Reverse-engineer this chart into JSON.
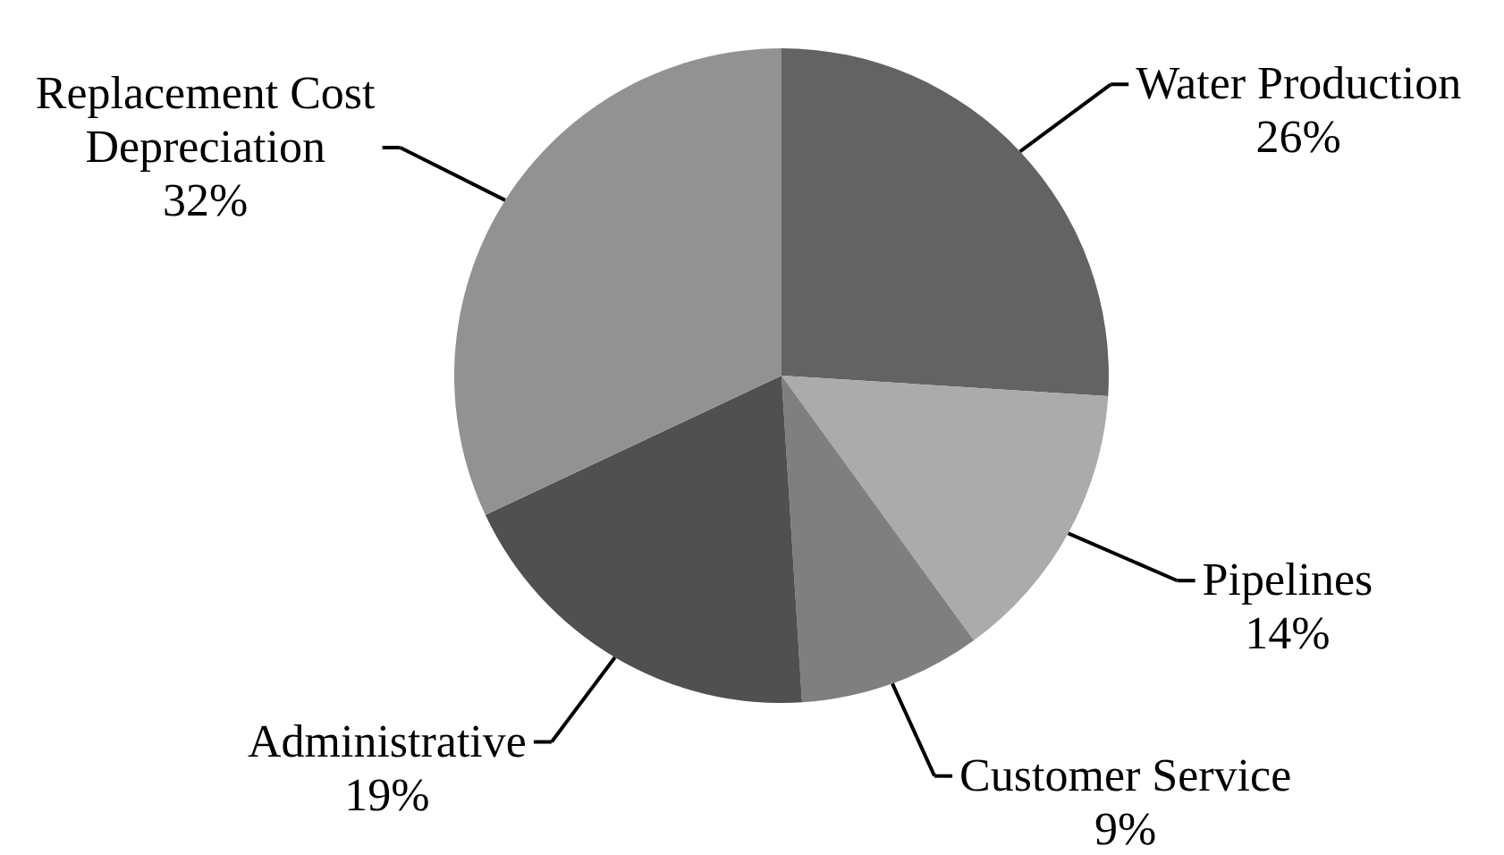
{
  "chart_data": {
    "type": "pie",
    "categories": [
      "Water Production",
      "Pipelines",
      "Customer Service",
      "Administrative",
      "Replacement Cost Depreciation"
    ],
    "values": [
      26,
      14,
      9,
      19,
      32
    ],
    "colors": [
      "#636363",
      "#ababab",
      "#7f7f7f",
      "#505050",
      "#929292"
    ],
    "value_labels": [
      "26%",
      "14%",
      "9%",
      "19%",
      "32%"
    ]
  }
}
